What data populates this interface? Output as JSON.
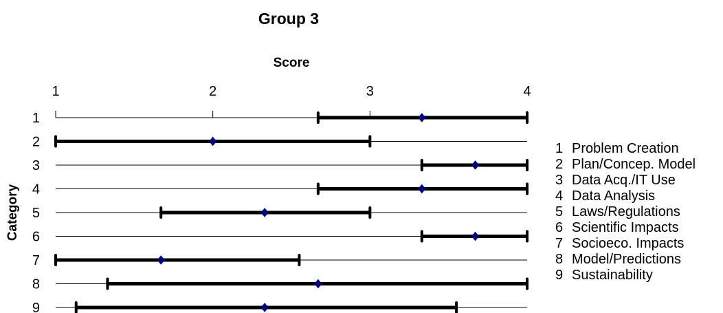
{
  "chart_data": {
    "type": "range",
    "title": "Group 3",
    "xlabel": "Score",
    "ylabel": "Category",
    "xlim": [
      1,
      4
    ],
    "x_ticks": [
      "1",
      "2",
      "3",
      "4"
    ],
    "categories": [
      "1",
      "2",
      "3",
      "4",
      "5",
      "6",
      "7",
      "8",
      "9"
    ],
    "series": [
      {
        "role": "range",
        "low": [
          2.67,
          1.0,
          3.33,
          2.67,
          1.67,
          3.33,
          1.0,
          1.33,
          1.13
        ],
        "high": [
          4.0,
          3.0,
          4.0,
          4.0,
          3.0,
          4.0,
          2.55,
          4.0,
          3.55
        ]
      },
      {
        "role": "mean",
        "values": [
          3.33,
          2.0,
          3.67,
          3.33,
          2.33,
          3.67,
          1.67,
          2.67,
          2.33
        ]
      }
    ],
    "legend": [
      {
        "num": "1",
        "label": "Problem Creation"
      },
      {
        "num": "2",
        "label": "Plan/Concep. Model"
      },
      {
        "num": "3",
        "label": "Data Acq./IT Use"
      },
      {
        "num": "4",
        "label": "Data Analysis"
      },
      {
        "num": "5",
        "label": "Laws/Regulations"
      },
      {
        "num": "6",
        "label": "Scientific Impacts"
      },
      {
        "num": "7",
        "label": "Socioeco. Impacts"
      },
      {
        "num": "8",
        "label": "Model/Predictions"
      },
      {
        "num": "9",
        "label": "Sustainability"
      }
    ],
    "grid": true,
    "legend_position": "right",
    "colors": {
      "bar": "#000000",
      "marker": "#000080",
      "grid": "#000000"
    }
  }
}
